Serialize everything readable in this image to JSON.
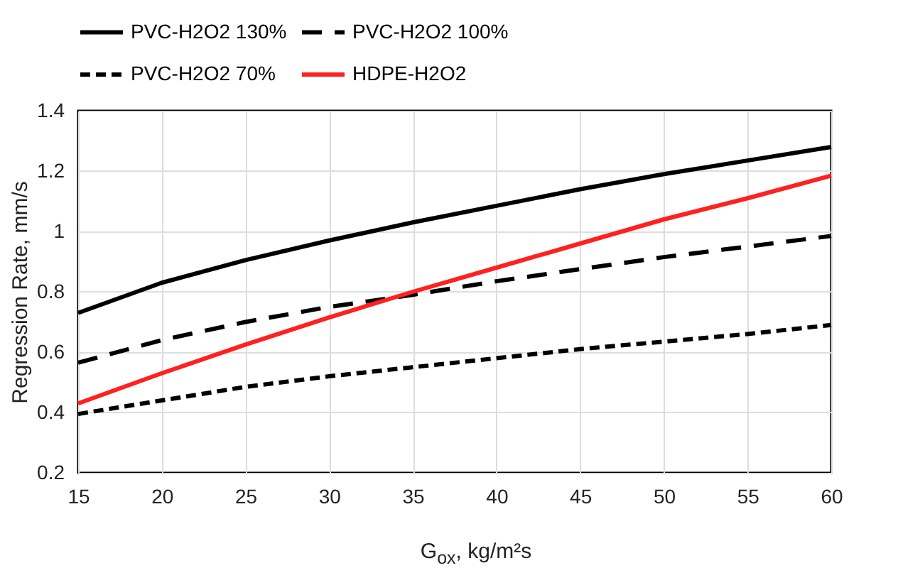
{
  "chart_data": {
    "type": "line",
    "xlabel": "G$_{ox}$, kg/m²s",
    "ylabel": "Regression Rate, mm/s",
    "x": [
      15,
      20,
      25,
      30,
      35,
      40,
      45,
      50,
      55,
      60
    ],
    "series": [
      {
        "name": "PVC-H2O2 130%",
        "color": "#000000",
        "line_style": "solid",
        "values": [
          0.73,
          0.83,
          0.905,
          0.97,
          1.03,
          1.085,
          1.14,
          1.19,
          1.235,
          1.28
        ]
      },
      {
        "name": "PVC-H2O2 100%",
        "color": "#000000",
        "line_style": "dashed",
        "values": [
          0.565,
          0.64,
          0.7,
          0.75,
          0.79,
          0.835,
          0.875,
          0.915,
          0.95,
          0.985
        ]
      },
      {
        "name": "PVC-H2O2 70%",
        "color": "#000000",
        "line_style": "dotted",
        "values": [
          0.395,
          0.44,
          0.485,
          0.52,
          0.55,
          0.58,
          0.61,
          0.635,
          0.66,
          0.69
        ]
      },
      {
        "name": "HDPE-H2O2",
        "color": "#ff2020",
        "line_style": "solid",
        "values": [
          0.43,
          0.53,
          0.625,
          0.715,
          0.8,
          0.88,
          0.96,
          1.04,
          1.11,
          1.185
        ]
      }
    ],
    "xlim": [
      15,
      60
    ],
    "xticks": [
      15,
      20,
      25,
      30,
      35,
      40,
      45,
      50,
      55,
      60
    ],
    "ylim": [
      0.2,
      1.4
    ],
    "yticks": [
      0.2,
      0.4,
      0.6,
      0.8,
      1,
      1.2,
      1.4
    ],
    "grid": true,
    "legend": "top",
    "marker": "none"
  }
}
